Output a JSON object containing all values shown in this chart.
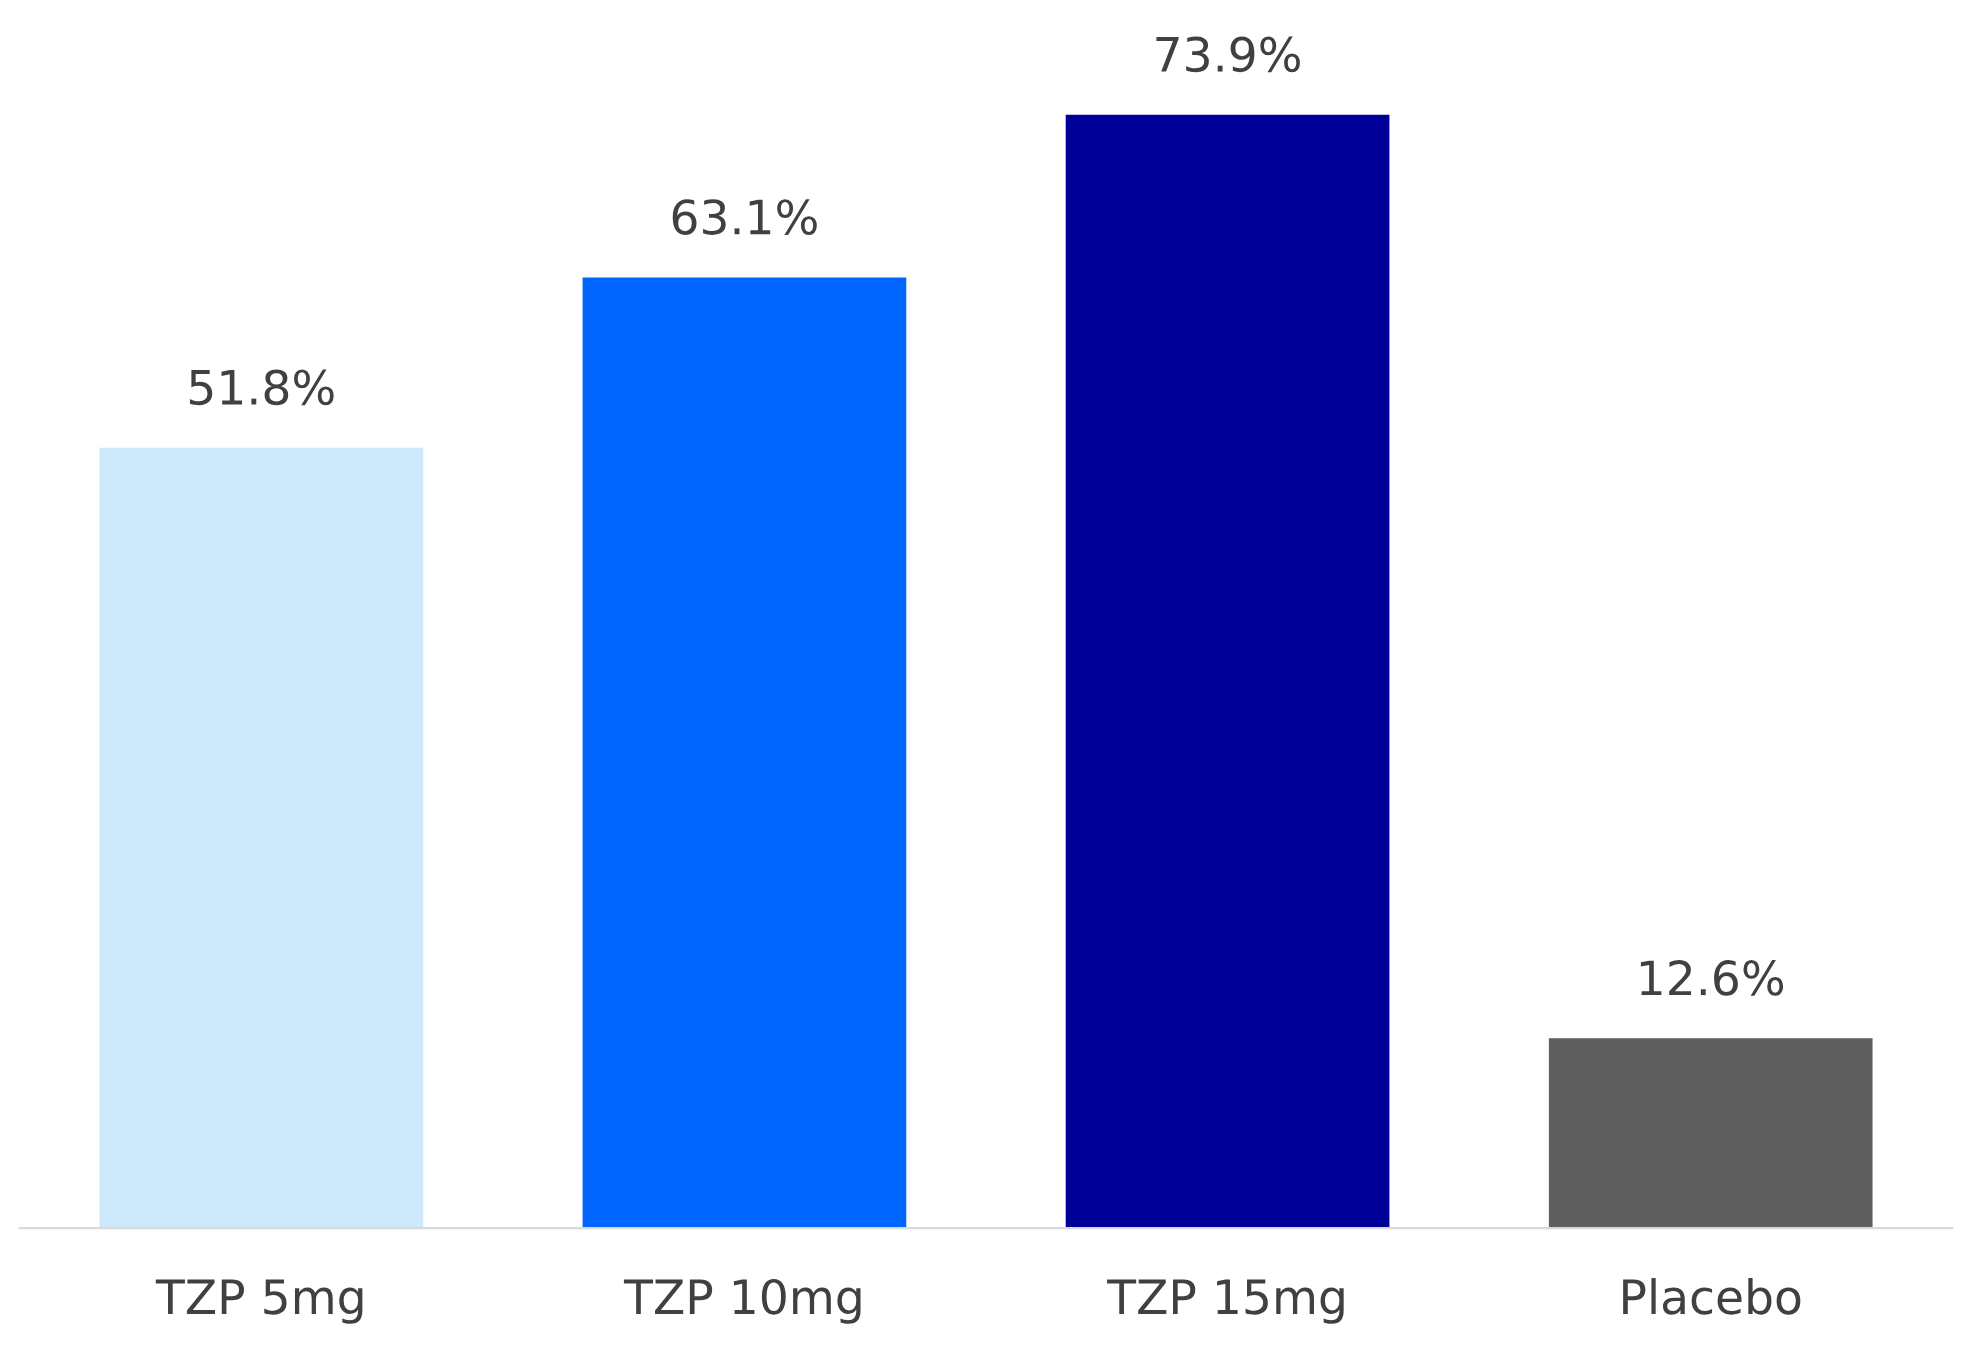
{
  "chart_data": {
    "type": "bar",
    "categories": [
      "TZP 5mg",
      "TZP 10mg",
      "TZP 15mg",
      "Placebo"
    ],
    "values": [
      51.8,
      63.1,
      73.9,
      12.6
    ],
    "colors": [
      "#cde9fb",
      "#0066ff",
      "#000099",
      "#5f5f5f"
    ],
    "value_labels": [
      "51.8%",
      "63.1%",
      "73.9%",
      "12.6%"
    ],
    "grid": false,
    "legend": false
  }
}
